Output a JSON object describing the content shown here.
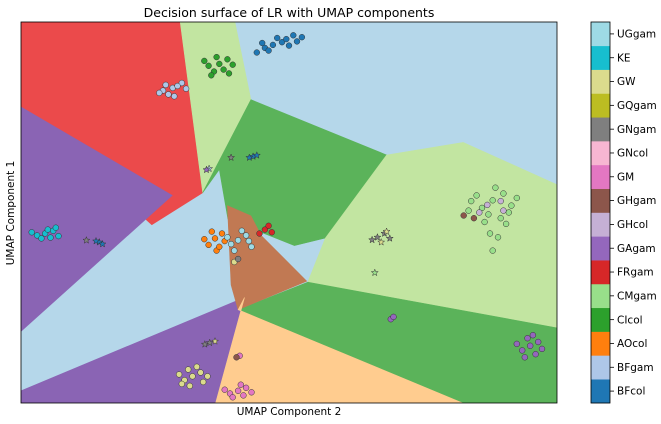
{
  "chart_data": {
    "type": "scatter",
    "title": "Decision surface of LR with UMAP components",
    "xlabel": "UMAP Component 2",
    "ylabel": "UMAP Component 1",
    "xticks": "none",
    "yticks": "none",
    "legend": "colorbar-right",
    "xlim": [
      0,
      1
    ],
    "ylim": [
      0,
      1
    ],
    "classes": [
      {
        "name": "BFcol",
        "color": "#1f77b4"
      },
      {
        "name": "BFgam",
        "color": "#aec7e8"
      },
      {
        "name": "AOcol",
        "color": "#ff7f0e"
      },
      {
        "name": "CIcol",
        "color": "#2ca02c"
      },
      {
        "name": "CMgam",
        "color": "#98df8a"
      },
      {
        "name": "FRgam",
        "color": "#d62728"
      },
      {
        "name": "GAgam",
        "color": "#9467bd"
      },
      {
        "name": "GHcol",
        "color": "#c5b0d5"
      },
      {
        "name": "GHgam",
        "color": "#8c564b"
      },
      {
        "name": "GM",
        "color": "#e377c2"
      },
      {
        "name": "GNcol",
        "color": "#f7b6d2"
      },
      {
        "name": "GNgam",
        "color": "#7f7f7f"
      },
      {
        "name": "GQgam",
        "color": "#bcbd22"
      },
      {
        "name": "GW",
        "color": "#dbdb8d"
      },
      {
        "name": "KE",
        "color": "#17becf"
      },
      {
        "name": "UGgam",
        "color": "#9edae5"
      }
    ],
    "regions": [
      {
        "class": "BFcol",
        "color": "#b5d7ea",
        "polygon": [
          [
            0,
            0
          ],
          [
            1,
            0
          ],
          [
            1,
            1
          ],
          [
            0,
            1
          ]
        ]
      },
      {
        "class": "FRgam",
        "color": "#eb4a4b",
        "polygon": [
          [
            0,
            0
          ],
          [
            0.297,
            0
          ],
          [
            0.339,
            0.448
          ],
          [
            0.244,
            0.532
          ],
          [
            0,
            0.223
          ]
        ]
      },
      {
        "class": "CMgam",
        "color": "#c2e5a1",
        "polygon": [
          [
            0.297,
            0
          ],
          [
            0.399,
            0
          ],
          [
            0.429,
            0.204
          ],
          [
            0.339,
            0.448
          ]
        ]
      },
      {
        "class": "CIcol",
        "color": "#5bb35a",
        "polygon": [
          [
            0.429,
            0.204
          ],
          [
            0.682,
            0.349
          ],
          [
            0.568,
            0.567
          ],
          [
            0.51,
            0.587
          ],
          [
            0.386,
            0.517
          ],
          [
            0.37,
            0.387
          ],
          [
            0.339,
            0.448
          ]
        ]
      },
      {
        "class": "CMgam",
        "color": "#c2e5a1",
        "polygon": [
          [
            0.682,
            0.349
          ],
          [
            0.825,
            0.316
          ],
          [
            1,
            0.427
          ],
          [
            1,
            0.803
          ],
          [
            0.535,
            0.683
          ],
          [
            0.568,
            0.567
          ]
        ]
      },
      {
        "class": "CIcol",
        "color": "#5bb35a",
        "polygon": [
          [
            0.535,
            0.683
          ],
          [
            1,
            0.803
          ],
          [
            1,
            1
          ],
          [
            0.824,
            1
          ],
          [
            0.405,
            0.755
          ]
        ]
      },
      {
        "class": "GAgam",
        "color": "#8a64b4",
        "polygon": [
          [
            0,
            0.223
          ],
          [
            0.282,
            0.455
          ],
          [
            0,
            0.812
          ]
        ]
      },
      {
        "class": "GAgam",
        "color": "#8a64b4",
        "polygon": [
          [
            0,
            0.968
          ],
          [
            0.417,
            0.723
          ],
          [
            0.363,
            1
          ],
          [
            0,
            1
          ]
        ]
      },
      {
        "class": "GHgam",
        "color": "#c17953",
        "polygon": [
          [
            0.385,
            0.482
          ],
          [
            0.429,
            0.509
          ],
          [
            0.448,
            0.56
          ],
          [
            0.533,
            0.68
          ],
          [
            0.405,
            0.755
          ],
          [
            0.392,
            0.69
          ]
        ]
      },
      {
        "class": "AOcol",
        "color": "#ffcc8f",
        "polygon": [
          [
            0.417,
            0.723
          ],
          [
            0.405,
            0.755
          ],
          [
            0.824,
            1
          ],
          [
            0.363,
            1
          ]
        ]
      }
    ],
    "points": [
      {
        "class": "BFcol",
        "shape": "circle",
        "x": 0.487,
        "y": 0.053
      },
      {
        "class": "BFcol",
        "shape": "circle",
        "x": 0.455,
        "y": 0.068
      },
      {
        "class": "BFcol",
        "shape": "circle",
        "x": 0.508,
        "y": 0.035
      },
      {
        "class": "BFcol",
        "shape": "circle",
        "x": 0.524,
        "y": 0.04
      },
      {
        "class": "BFcol",
        "shape": "circle",
        "x": 0.44,
        "y": 0.08
      },
      {
        "class": "BFcol",
        "shape": "circle",
        "x": 0.47,
        "y": 0.06
      },
      {
        "class": "BFcol",
        "shape": "circle",
        "x": 0.495,
        "y": 0.045
      },
      {
        "class": "BFcol",
        "shape": "circle",
        "x": 0.515,
        "y": 0.051
      },
      {
        "class": "BFcol",
        "shape": "circle",
        "x": 0.462,
        "y": 0.075
      },
      {
        "class": "BFcol",
        "shape": "circle",
        "x": 0.478,
        "y": 0.042
      },
      {
        "class": "BFcol",
        "shape": "circle",
        "x": 0.5,
        "y": 0.062
      },
      {
        "class": "BFcol",
        "shape": "circle",
        "x": 0.45,
        "y": 0.055
      },
      {
        "class": "BFgam",
        "shape": "circle",
        "x": 0.283,
        "y": 0.173
      },
      {
        "class": "BFgam",
        "shape": "circle",
        "x": 0.265,
        "y": 0.18
      },
      {
        "class": "BFgam",
        "shape": "circle",
        "x": 0.3,
        "y": 0.16
      },
      {
        "class": "BFgam",
        "shape": "circle",
        "x": 0.275,
        "y": 0.19
      },
      {
        "class": "BFgam",
        "shape": "circle",
        "x": 0.292,
        "y": 0.168
      },
      {
        "class": "BFgam",
        "shape": "circle",
        "x": 0.258,
        "y": 0.186
      },
      {
        "class": "BFgam",
        "shape": "circle",
        "x": 0.308,
        "y": 0.175
      },
      {
        "class": "BFgam",
        "shape": "circle",
        "x": 0.286,
        "y": 0.195
      },
      {
        "class": "BFgam",
        "shape": "circle",
        "x": 0.27,
        "y": 0.165
      },
      {
        "class": "CIcol",
        "shape": "circle",
        "x": 0.37,
        "y": 0.11
      },
      {
        "class": "CIcol",
        "shape": "circle",
        "x": 0.35,
        "y": 0.115
      },
      {
        "class": "CIcol",
        "shape": "circle",
        "x": 0.385,
        "y": 0.098
      },
      {
        "class": "CIcol",
        "shape": "circle",
        "x": 0.36,
        "y": 0.13
      },
      {
        "class": "CIcol",
        "shape": "circle",
        "x": 0.395,
        "y": 0.112
      },
      {
        "class": "CIcol",
        "shape": "circle",
        "x": 0.342,
        "y": 0.102
      },
      {
        "class": "CIcol",
        "shape": "circle",
        "x": 0.378,
        "y": 0.125
      },
      {
        "class": "CIcol",
        "shape": "circle",
        "x": 0.365,
        "y": 0.092
      },
      {
        "class": "CIcol",
        "shape": "circle",
        "x": 0.355,
        "y": 0.14
      },
      {
        "class": "CIcol",
        "shape": "circle",
        "x": 0.388,
        "y": 0.135
      },
      {
        "class": "GNgam",
        "shape": "star",
        "x": 0.392,
        "y": 0.356
      },
      {
        "class": "BFcol",
        "shape": "star",
        "x": 0.433,
        "y": 0.353
      },
      {
        "class": "BFcol",
        "shape": "star",
        "x": 0.44,
        "y": 0.35
      },
      {
        "class": "BFcol",
        "shape": "star",
        "x": 0.426,
        "y": 0.356
      },
      {
        "class": "BFgam",
        "shape": "star",
        "x": 0.351,
        "y": 0.385
      },
      {
        "class": "GAgam",
        "shape": "star",
        "x": 0.346,
        "y": 0.388
      },
      {
        "class": "KE",
        "shape": "circle",
        "x": 0.045,
        "y": 0.555
      },
      {
        "class": "KE",
        "shape": "circle",
        "x": 0.03,
        "y": 0.56
      },
      {
        "class": "KE",
        "shape": "circle",
        "x": 0.06,
        "y": 0.548
      },
      {
        "class": "KE",
        "shape": "circle",
        "x": 0.02,
        "y": 0.552
      },
      {
        "class": "KE",
        "shape": "circle",
        "x": 0.07,
        "y": 0.562
      },
      {
        "class": "KE",
        "shape": "circle",
        "x": 0.05,
        "y": 0.545
      },
      {
        "class": "KE",
        "shape": "circle",
        "x": 0.038,
        "y": 0.568
      },
      {
        "class": "KE",
        "shape": "circle",
        "x": 0.065,
        "y": 0.54
      },
      {
        "class": "KE",
        "shape": "circle",
        "x": 0.055,
        "y": 0.566
      },
      {
        "class": "GNgam",
        "shape": "star",
        "x": 0.122,
        "y": 0.573
      },
      {
        "class": "BFcol",
        "shape": "star",
        "x": 0.146,
        "y": 0.578
      },
      {
        "class": "BFcol",
        "shape": "star",
        "x": 0.152,
        "y": 0.583
      },
      {
        "class": "BFcol",
        "shape": "star",
        "x": 0.14,
        "y": 0.575
      },
      {
        "class": "AOcol",
        "shape": "circle",
        "x": 0.362,
        "y": 0.568
      },
      {
        "class": "AOcol",
        "shape": "circle",
        "x": 0.35,
        "y": 0.585
      },
      {
        "class": "AOcol",
        "shape": "circle",
        "x": 0.375,
        "y": 0.555
      },
      {
        "class": "AOcol",
        "shape": "circle",
        "x": 0.342,
        "y": 0.57
      },
      {
        "class": "AOcol",
        "shape": "circle",
        "x": 0.365,
        "y": 0.6
      },
      {
        "class": "AOcol",
        "shape": "circle",
        "x": 0.38,
        "y": 0.575
      },
      {
        "class": "AOcol",
        "shape": "circle",
        "x": 0.356,
        "y": 0.55
      },
      {
        "class": "AOcol",
        "shape": "circle",
        "x": 0.37,
        "y": 0.59
      },
      {
        "class": "UGgam",
        "shape": "circle",
        "x": 0.405,
        "y": 0.573
      },
      {
        "class": "UGgam",
        "shape": "circle",
        "x": 0.42,
        "y": 0.56
      },
      {
        "class": "UGgam",
        "shape": "circle",
        "x": 0.392,
        "y": 0.583
      },
      {
        "class": "UGgam",
        "shape": "circle",
        "x": 0.43,
        "y": 0.59
      },
      {
        "class": "UGgam",
        "shape": "circle",
        "x": 0.412,
        "y": 0.548
      },
      {
        "class": "UGgam",
        "shape": "circle",
        "x": 0.398,
        "y": 0.6
      },
      {
        "class": "UGgam",
        "shape": "circle",
        "x": 0.425,
        "y": 0.575
      },
      {
        "class": "UGgam",
        "shape": "circle",
        "x": 0.385,
        "y": 0.565
      },
      {
        "class": "FRgam",
        "shape": "circle",
        "x": 0.455,
        "y": 0.545
      },
      {
        "class": "FRgam",
        "shape": "circle",
        "x": 0.445,
        "y": 0.555
      },
      {
        "class": "FRgam",
        "shape": "circle",
        "x": 0.462,
        "y": 0.535
      },
      {
        "class": "FRgam",
        "shape": "circle",
        "x": 0.468,
        "y": 0.552
      },
      {
        "class": "GW",
        "shape": "circle",
        "x": 0.398,
        "y": 0.63
      },
      {
        "class": "GNgam",
        "shape": "circle",
        "x": 0.405,
        "y": 0.622
      },
      {
        "class": "GNgam",
        "shape": "star",
        "x": 0.665,
        "y": 0.565
      },
      {
        "class": "GNgam",
        "shape": "star",
        "x": 0.678,
        "y": 0.555
      },
      {
        "class": "GNgam",
        "shape": "star",
        "x": 0.655,
        "y": 0.572
      },
      {
        "class": "GNgam",
        "shape": "star",
        "x": 0.688,
        "y": 0.568
      },
      {
        "class": "GW",
        "shape": "star",
        "x": 0.672,
        "y": 0.578
      },
      {
        "class": "GW",
        "shape": "star",
        "x": 0.682,
        "y": 0.55
      },
      {
        "class": "CMgam",
        "shape": "star",
        "x": 0.66,
        "y": 0.658
      },
      {
        "class": "CMgam",
        "shape": "circle",
        "x": 0.88,
        "y": 0.468
      },
      {
        "class": "CMgam",
        "shape": "circle",
        "x": 0.86,
        "y": 0.488
      },
      {
        "class": "CMgam",
        "shape": "circle",
        "x": 0.9,
        "y": 0.45
      },
      {
        "class": "CMgam",
        "shape": "circle",
        "x": 0.84,
        "y": 0.47
      },
      {
        "class": "CMgam",
        "shape": "circle",
        "x": 0.915,
        "y": 0.482
      },
      {
        "class": "CMgam",
        "shape": "circle",
        "x": 0.872,
        "y": 0.505
      },
      {
        "class": "CMgam",
        "shape": "circle",
        "x": 0.895,
        "y": 0.515
      },
      {
        "class": "CMgam",
        "shape": "circle",
        "x": 0.85,
        "y": 0.455
      },
      {
        "class": "CMgam",
        "shape": "circle",
        "x": 0.925,
        "y": 0.462
      },
      {
        "class": "CMgam",
        "shape": "circle",
        "x": 0.885,
        "y": 0.435
      },
      {
        "class": "CMgam",
        "shape": "circle",
        "x": 0.905,
        "y": 0.53
      },
      {
        "class": "CMgam",
        "shape": "circle",
        "x": 0.865,
        "y": 0.525
      },
      {
        "class": "CMgam",
        "shape": "circle",
        "x": 0.835,
        "y": 0.495
      },
      {
        "class": "CMgam",
        "shape": "circle",
        "x": 0.91,
        "y": 0.5
      },
      {
        "class": "CMgam",
        "shape": "circle",
        "x": 0.89,
        "y": 0.565
      },
      {
        "class": "CMgam",
        "shape": "circle",
        "x": 0.875,
        "y": 0.555
      },
      {
        "class": "CMgam",
        "shape": "circle",
        "x": 0.88,
        "y": 0.6
      },
      {
        "class": "GHcol",
        "shape": "circle",
        "x": 0.87,
        "y": 0.48
      },
      {
        "class": "GHcol",
        "shape": "circle",
        "x": 0.895,
        "y": 0.47
      },
      {
        "class": "GHcol",
        "shape": "circle",
        "x": 0.855,
        "y": 0.5
      },
      {
        "class": "GHcol",
        "shape": "circle",
        "x": 0.9,
        "y": 0.495
      },
      {
        "class": "GHgam",
        "shape": "circle",
        "x": 0.826,
        "y": 0.508
      },
      {
        "class": "GHgam",
        "shape": "circle",
        "x": 0.845,
        "y": 0.515
      },
      {
        "class": "GAgam",
        "shape": "circle",
        "x": 0.69,
        "y": 0.78
      },
      {
        "class": "GAgam",
        "shape": "circle",
        "x": 0.695,
        "y": 0.774
      },
      {
        "class": "GAgam",
        "shape": "circle",
        "x": 0.95,
        "y": 0.85
      },
      {
        "class": "GAgam",
        "shape": "circle",
        "x": 0.935,
        "y": 0.862
      },
      {
        "class": "GAgam",
        "shape": "circle",
        "x": 0.965,
        "y": 0.84
      },
      {
        "class": "GAgam",
        "shape": "circle",
        "x": 0.925,
        "y": 0.845
      },
      {
        "class": "GAgam",
        "shape": "circle",
        "x": 0.96,
        "y": 0.872
      },
      {
        "class": "GAgam",
        "shape": "circle",
        "x": 0.945,
        "y": 0.83
      },
      {
        "class": "GAgam",
        "shape": "circle",
        "x": 0.972,
        "y": 0.858
      },
      {
        "class": "GAgam",
        "shape": "circle",
        "x": 0.94,
        "y": 0.88
      },
      {
        "class": "GAgam",
        "shape": "circle",
        "x": 0.955,
        "y": 0.822
      },
      {
        "class": "GW",
        "shape": "circle",
        "x": 0.32,
        "y": 0.93
      },
      {
        "class": "GW",
        "shape": "circle",
        "x": 0.305,
        "y": 0.94
      },
      {
        "class": "GW",
        "shape": "circle",
        "x": 0.335,
        "y": 0.92
      },
      {
        "class": "GW",
        "shape": "circle",
        "x": 0.295,
        "y": 0.925
      },
      {
        "class": "GW",
        "shape": "circle",
        "x": 0.34,
        "y": 0.945
      },
      {
        "class": "GW",
        "shape": "circle",
        "x": 0.315,
        "y": 0.955
      },
      {
        "class": "GW",
        "shape": "circle",
        "x": 0.328,
        "y": 0.905
      },
      {
        "class": "GW",
        "shape": "circle",
        "x": 0.3,
        "y": 0.95
      },
      {
        "class": "GW",
        "shape": "circle",
        "x": 0.348,
        "y": 0.93
      },
      {
        "class": "GW",
        "shape": "circle",
        "x": 0.312,
        "y": 0.912
      },
      {
        "class": "GM",
        "shape": "circle",
        "x": 0.405,
        "y": 0.968
      },
      {
        "class": "GM",
        "shape": "circle",
        "x": 0.39,
        "y": 0.975
      },
      {
        "class": "GM",
        "shape": "circle",
        "x": 0.42,
        "y": 0.96
      },
      {
        "class": "GM",
        "shape": "circle",
        "x": 0.395,
        "y": 0.985
      },
      {
        "class": "GM",
        "shape": "circle",
        "x": 0.415,
        "y": 0.98
      },
      {
        "class": "GM",
        "shape": "circle",
        "x": 0.38,
        "y": 0.965
      },
      {
        "class": "GM",
        "shape": "circle",
        "x": 0.43,
        "y": 0.972
      },
      {
        "class": "GM",
        "shape": "circle",
        "x": 0.41,
        "y": 0.952
      },
      {
        "class": "GNgam",
        "shape": "star",
        "x": 0.352,
        "y": 0.842
      },
      {
        "class": "GW",
        "shape": "star",
        "x": 0.362,
        "y": 0.838
      },
      {
        "class": "GNgam",
        "shape": "star",
        "x": 0.343,
        "y": 0.846
      },
      {
        "class": "GM",
        "shape": "circle",
        "x": 0.408,
        "y": 0.876
      },
      {
        "class": "GHgam",
        "shape": "circle",
        "x": 0.402,
        "y": 0.88
      }
    ]
  }
}
